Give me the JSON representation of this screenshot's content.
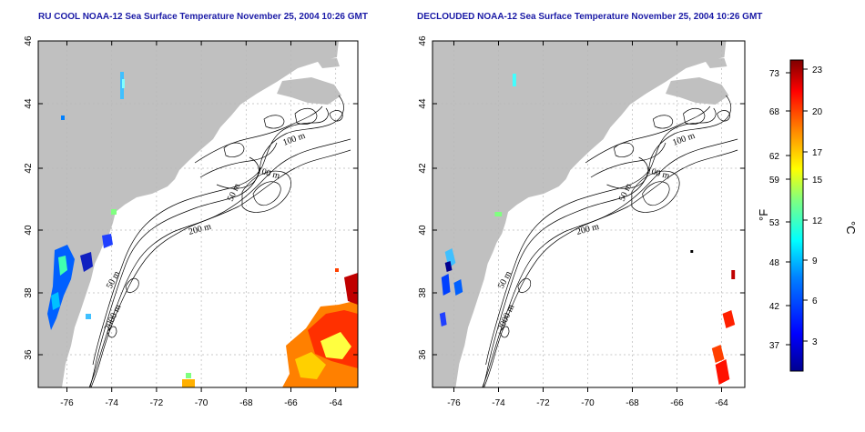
{
  "maps": [
    {
      "id": "left",
      "title": "RU COOL NOAA-12 Sea Surface Temperature November 25, 2004 10:26 GMT",
      "lat_ticks": [
        "46",
        "44",
        "42",
        "40",
        "38",
        "36"
      ],
      "lon_ticks": [
        "-76",
        "-74",
        "-72",
        "-70",
        "-68",
        "-66",
        "-64"
      ],
      "contour_labels": [
        "100 m",
        "100 m",
        "50 m",
        "200 m",
        "50 m",
        "2000 m"
      ]
    },
    {
      "id": "right",
      "title": "DECLOUDED NOAA-12 Sea Surface Temperature November 25, 2004 10:26 GMT",
      "lat_ticks": [
        "46",
        "44",
        "42",
        "40",
        "38",
        "36"
      ],
      "lon_ticks": [
        "-76",
        "-74",
        "-72",
        "-70",
        "-68",
        "-66",
        "-64"
      ],
      "contour_labels": [
        "100 m",
        "100 m",
        "50 m",
        "200 m",
        "50 m",
        "2000 m"
      ]
    }
  ],
  "colorbar": {
    "f_unit": "°F",
    "c_unit": "°C",
    "f_ticks": [
      "73",
      "68",
      "62",
      "59",
      "53",
      "48",
      "42",
      "37"
    ],
    "c_ticks": [
      "23",
      "20",
      "17",
      "15",
      "12",
      "9",
      "6",
      "3"
    ]
  },
  "colors": {
    "land": "#c0c0c0",
    "ocean": "#ffffff",
    "title": "#1a1aa6",
    "grid": "#b8b8b8",
    "colormap": [
      "#00008f",
      "#0000ff",
      "#0080ff",
      "#00ffff",
      "#80ff80",
      "#ffff00",
      "#ff8000",
      "#ff0000",
      "#800000"
    ]
  }
}
